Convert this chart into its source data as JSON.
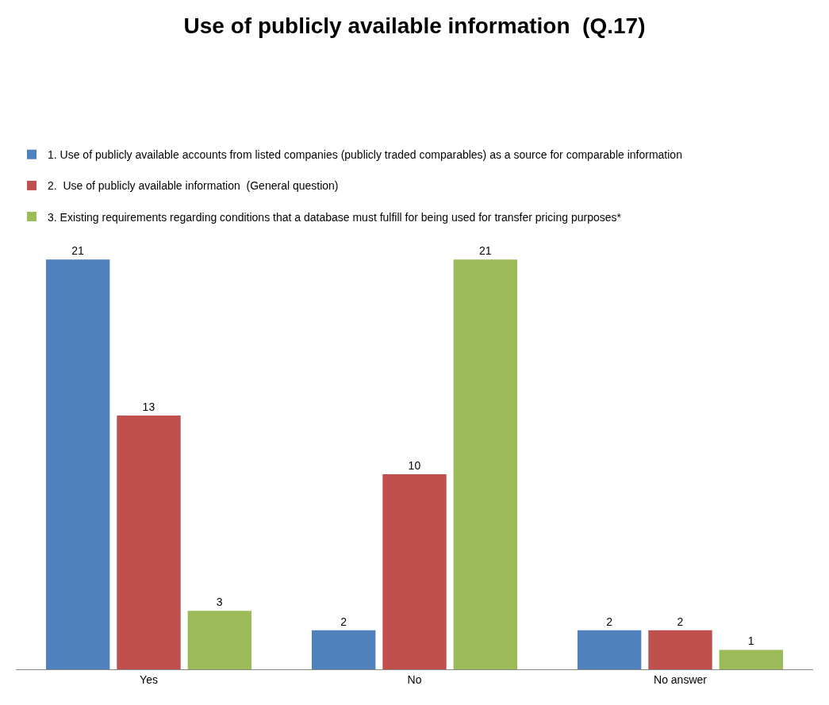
{
  "chart_data": {
    "type": "bar",
    "title": "Use of publicly available information  (Q.17)",
    "categories": [
      "Yes",
      "No",
      "No answer"
    ],
    "series": [
      {
        "name": "1. Use of publicly available accounts from listed companies (publicly traded comparables) as a source for comparable information",
        "color": "#4f81bd",
        "values": [
          21,
          2,
          2
        ]
      },
      {
        "name": "2.  Use of publicly available information  (General question)",
        "color": "#c0504d",
        "values": [
          13,
          10,
          2
        ]
      },
      {
        "name": "3. Existing requirements regarding conditions that a database must fulfill for being used for transfer pricing purposes*",
        "color": "#9bbb59",
        "values": [
          3,
          21,
          1
        ]
      }
    ],
    "data_labels": true,
    "legend": "top"
  }
}
